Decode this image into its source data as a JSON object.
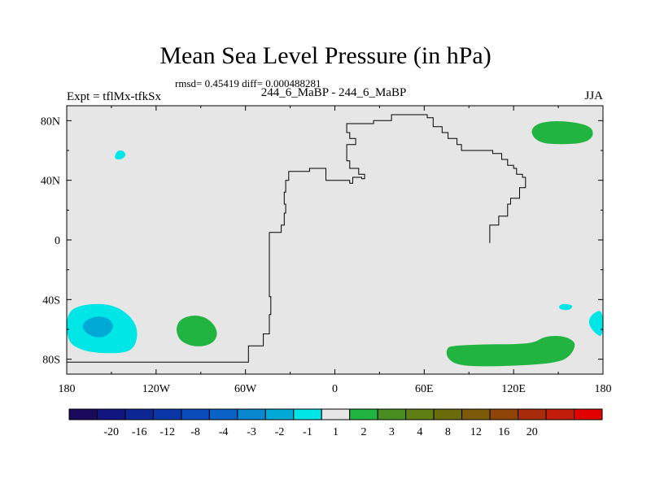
{
  "title": "Mean Sea Level Pressure (in hPa)",
  "stats": "rmsd= 0.45419 diff= 0.000488281",
  "experiment": "Expt = tflMx-tfkSx",
  "case_label": "244_6_MaBP - 244_6_MaBP",
  "season": "JJA",
  "colors": {
    "background": "#e6e6e6",
    "cyan": "#00e5e5",
    "light_blue": "#00a9d6",
    "green": "#22b441",
    "coastline": "#000000"
  },
  "chart_data": {
    "type": "map",
    "projection": "cylindrical equidistant",
    "xlim": [
      -180,
      180
    ],
    "ylim": [
      -90,
      90
    ],
    "x_ticks": [
      {
        "value": -180,
        "label": "180"
      },
      {
        "value": -120,
        "label": "120W"
      },
      {
        "value": -60,
        "label": "60W"
      },
      {
        "value": 0,
        "label": "0"
      },
      {
        "value": 60,
        "label": "60E"
      },
      {
        "value": 120,
        "label": "120E"
      },
      {
        "value": 180,
        "label": "180"
      }
    ],
    "y_ticks": [
      {
        "value": 80,
        "label": "80N"
      },
      {
        "value": 40,
        "label": "40N"
      },
      {
        "value": 0,
        "label": "0"
      },
      {
        "value": -40,
        "label": "40S"
      },
      {
        "value": -80,
        "label": "80S"
      }
    ],
    "contour_levels": [
      -20,
      -16,
      -12,
      -8,
      -4,
      -3,
      -2,
      -1,
      1,
      2,
      3,
      4,
      8,
      12,
      16,
      20
    ],
    "colorbar": [
      "#1a0a5e",
      "#0f147f",
      "#0c2694",
      "#0a37a8",
      "#0a4cba",
      "#0a62c7",
      "#0a88cf",
      "#00a9d6",
      "#00e5e5",
      "#e6e6e6",
      "#22b441",
      "#4a8e22",
      "#5f7e14",
      "#6b6d0c",
      "#7d5a08",
      "#8f4408",
      "#a62c0a",
      "#c41c0a",
      "#e00000"
    ],
    "anomaly_regions": [
      {
        "name": "north-pacific-cyan",
        "category": "-2 to -1",
        "color": "#00e5e5",
        "points": [
          [
            -148,
            56
          ],
          [
            -146,
            60
          ],
          [
            -142,
            60
          ],
          [
            -140,
            57
          ],
          [
            -143,
            54
          ],
          [
            -147,
            54
          ]
        ]
      },
      {
        "name": "south-pacific-cyan",
        "category": "-2 to -1",
        "color": "#00e5e5",
        "points": [
          [
            -180,
            -48
          ],
          [
            -168,
            -43
          ],
          [
            -150,
            -43
          ],
          [
            -138,
            -50
          ],
          [
            -132,
            -60
          ],
          [
            -134,
            -72
          ],
          [
            -142,
            -76
          ],
          [
            -158,
            -76
          ],
          [
            -170,
            -74
          ],
          [
            -180,
            -68
          ]
        ]
      },
      {
        "name": "south-pacific-blue",
        "category": "-3 to -2",
        "color": "#00a9d6",
        "points": [
          [
            -170,
            -56
          ],
          [
            -162,
            -51
          ],
          [
            -152,
            -52
          ],
          [
            -148,
            -58
          ],
          [
            -152,
            -64
          ],
          [
            -160,
            -66
          ],
          [
            -168,
            -62
          ]
        ]
      },
      {
        "name": "south-pacific-green",
        "category": "1 to 2",
        "color": "#22b441",
        "points": [
          [
            -107,
            -60
          ],
          [
            -104,
            -53
          ],
          [
            -94,
            -50
          ],
          [
            -84,
            -53
          ],
          [
            -78,
            -62
          ],
          [
            -82,
            -70
          ],
          [
            -94,
            -72
          ],
          [
            -104,
            -68
          ]
        ]
      },
      {
        "name": "arctic-green",
        "category": "1 to 2",
        "color": "#22b441",
        "points": [
          [
            131,
            72
          ],
          [
            135,
            78
          ],
          [
            147,
            80
          ],
          [
            161,
            79
          ],
          [
            172,
            76
          ],
          [
            174,
            70
          ],
          [
            168,
            65
          ],
          [
            152,
            64
          ],
          [
            137,
            65
          ]
        ]
      },
      {
        "name": "southern-ocean-green",
        "category": "1 to 2",
        "color": "#22b441",
        "points": [
          [
            75,
            -73
          ],
          [
            78,
            -71
          ],
          [
            100,
            -70
          ],
          [
            120,
            -70
          ],
          [
            134,
            -69
          ],
          [
            140,
            -65
          ],
          [
            150,
            -64
          ],
          [
            158,
            -66
          ],
          [
            162,
            -70
          ],
          [
            158,
            -78
          ],
          [
            150,
            -82
          ],
          [
            130,
            -84
          ],
          [
            100,
            -85
          ],
          [
            82,
            -84
          ],
          [
            75,
            -79
          ]
        ]
      },
      {
        "name": "tasman-cyan",
        "category": "-2 to -1",
        "color": "#00e5e5",
        "points": [
          [
            150,
            -45
          ],
          [
            152,
            -43
          ],
          [
            156,
            -43
          ],
          [
            160,
            -44
          ],
          [
            158,
            -47
          ],
          [
            152,
            -47
          ]
        ]
      },
      {
        "name": "south-pacific-east-cyan",
        "category": "-2 to -1",
        "color": "#00e5e5",
        "points": [
          [
            180,
            -46
          ],
          [
            172,
            -50
          ],
          [
            170,
            -56
          ],
          [
            174,
            -62
          ],
          [
            180,
            -66
          ]
        ]
      }
    ],
    "coastline_polylines": [
      [
        [
          -180,
          -82
        ],
        [
          -60,
          -82
        ],
        [
          -58,
          -71
        ],
        [
          -48,
          -63
        ],
        [
          -44,
          -50
        ],
        [
          -43,
          -38
        ],
        [
          -44,
          -23
        ],
        [
          -44,
          -8
        ],
        [
          -44,
          5
        ],
        [
          -36,
          10
        ],
        [
          -34,
          18
        ],
        [
          -33,
          24
        ],
        [
          -34,
          32
        ],
        [
          -33,
          40
        ],
        [
          -31,
          46
        ],
        [
          -17,
          48
        ],
        [
          -10,
          48
        ],
        [
          -6,
          44
        ],
        [
          -6,
          40
        ],
        [
          5,
          40
        ],
        [
          10,
          38
        ],
        [
          12,
          42
        ],
        [
          18,
          41
        ],
        [
          20,
          44
        ],
        [
          16,
          48
        ],
        [
          10,
          48
        ],
        [
          10,
          53
        ],
        [
          8,
          58
        ],
        [
          8,
          64
        ],
        [
          14,
          68
        ],
        [
          10,
          72
        ],
        [
          8,
          78
        ],
        [
          26,
          80
        ],
        [
          38,
          84
        ],
        [
          60,
          84
        ],
        [
          62,
          82
        ],
        [
          66,
          76
        ],
        [
          72,
          72
        ],
        [
          76,
          68
        ],
        [
          82,
          64
        ],
        [
          85,
          60
        ],
        [
          98,
          60
        ],
        [
          106,
          58
        ],
        [
          112,
          54
        ],
        [
          116,
          50
        ],
        [
          120,
          48
        ],
        [
          122,
          44
        ],
        [
          126,
          42
        ],
        [
          128,
          35
        ],
        [
          124,
          28
        ],
        [
          118,
          24
        ],
        [
          116,
          16
        ],
        [
          110,
          10
        ],
        [
          104,
          4
        ],
        [
          104,
          -2
        ]
      ]
    ]
  }
}
